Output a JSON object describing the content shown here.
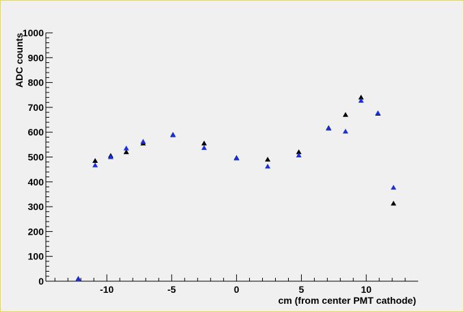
{
  "chart_data": {
    "type": "scatter",
    "title": "",
    "xlabel": "cm (from center PMT cathode)",
    "ylabel": "ADC counts",
    "xlim": [
      -14.7,
      14.0
    ],
    "ylim": [
      0,
      1000
    ],
    "x_ticks": [
      -10,
      -5,
      0,
      5,
      10
    ],
    "y_ticks": [
      0,
      100,
      200,
      300,
      400,
      500,
      600,
      700,
      800,
      900,
      1000
    ],
    "grid": false,
    "legend": "none",
    "series": [
      {
        "color": "#000000",
        "marker": "triangle",
        "points": [
          {
            "x": -12.2,
            "y": 10
          },
          {
            "x": -10.9,
            "y": 485
          },
          {
            "x": -9.7,
            "y": 505
          },
          {
            "x": -8.5,
            "y": 520
          },
          {
            "x": -7.2,
            "y": 555
          },
          {
            "x": -4.9,
            "y": 590
          },
          {
            "x": -2.5,
            "y": 555
          },
          {
            "x": 0.0,
            "y": 497
          },
          {
            "x": 2.4,
            "y": 490
          },
          {
            "x": 4.8,
            "y": 520
          },
          {
            "x": 7.1,
            "y": 617
          },
          {
            "x": 8.4,
            "y": 670
          },
          {
            "x": 9.6,
            "y": 740
          },
          {
            "x": 10.9,
            "y": 675
          },
          {
            "x": 12.1,
            "y": 313
          }
        ]
      },
      {
        "color": "#1a2ee0",
        "marker": "triangle",
        "points": [
          {
            "x": -12.2,
            "y": 8
          },
          {
            "x": -10.9,
            "y": 467
          },
          {
            "x": -9.7,
            "y": 500
          },
          {
            "x": -8.5,
            "y": 535
          },
          {
            "x": -7.2,
            "y": 562
          },
          {
            "x": -4.9,
            "y": 588
          },
          {
            "x": -2.5,
            "y": 537
          },
          {
            "x": 0.0,
            "y": 495
          },
          {
            "x": 2.4,
            "y": 462
          },
          {
            "x": 4.8,
            "y": 507
          },
          {
            "x": 7.1,
            "y": 615
          },
          {
            "x": 8.4,
            "y": 603
          },
          {
            "x": 9.6,
            "y": 727
          },
          {
            "x": 10.9,
            "y": 677
          },
          {
            "x": 12.1,
            "y": 377
          }
        ]
      }
    ]
  }
}
